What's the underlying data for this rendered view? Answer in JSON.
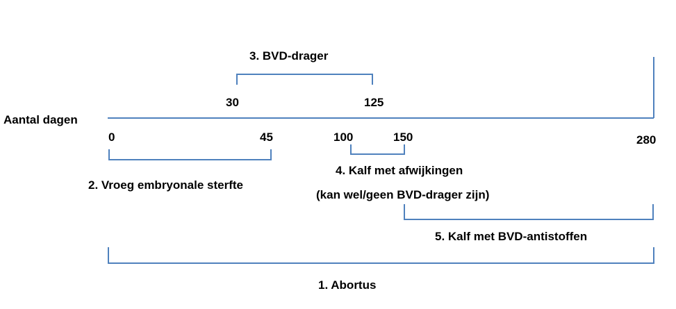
{
  "axis": {
    "title": "Aantal dagen",
    "line_color": "#4f81bd",
    "ticks": [
      {
        "key": "d0",
        "label": "0"
      },
      {
        "key": "d30",
        "label": "30"
      },
      {
        "key": "d45",
        "label": "45"
      },
      {
        "key": "d100",
        "label": "100"
      },
      {
        "key": "d125",
        "label": "125"
      },
      {
        "key": "d150",
        "label": "150"
      },
      {
        "key": "d280",
        "label": "280"
      }
    ]
  },
  "periods": [
    {
      "key": "abortus",
      "label": "1. Abortus",
      "start_day": 0,
      "end_day": 280
    },
    {
      "key": "vroeg_embryonale_sterfte",
      "label": "2. Vroeg embryonale sterfte",
      "start_day": 0,
      "end_day": 45
    },
    {
      "key": "bvd_drager",
      "label": "3. BVD-drager",
      "start_day": 30,
      "end_day": 125
    },
    {
      "key": "kalf_met_afwijkingen",
      "label": "4. Kalf met afwijkingen",
      "sublabel": "(kan wel/geen BVD-drager zijn)",
      "start_day": 100,
      "end_day": 150
    },
    {
      "key": "kalf_met_bvd_antistoffen",
      "label": "5. Kalf met BVD-antistoffen",
      "start_day": 150,
      "end_day": 280
    }
  ]
}
